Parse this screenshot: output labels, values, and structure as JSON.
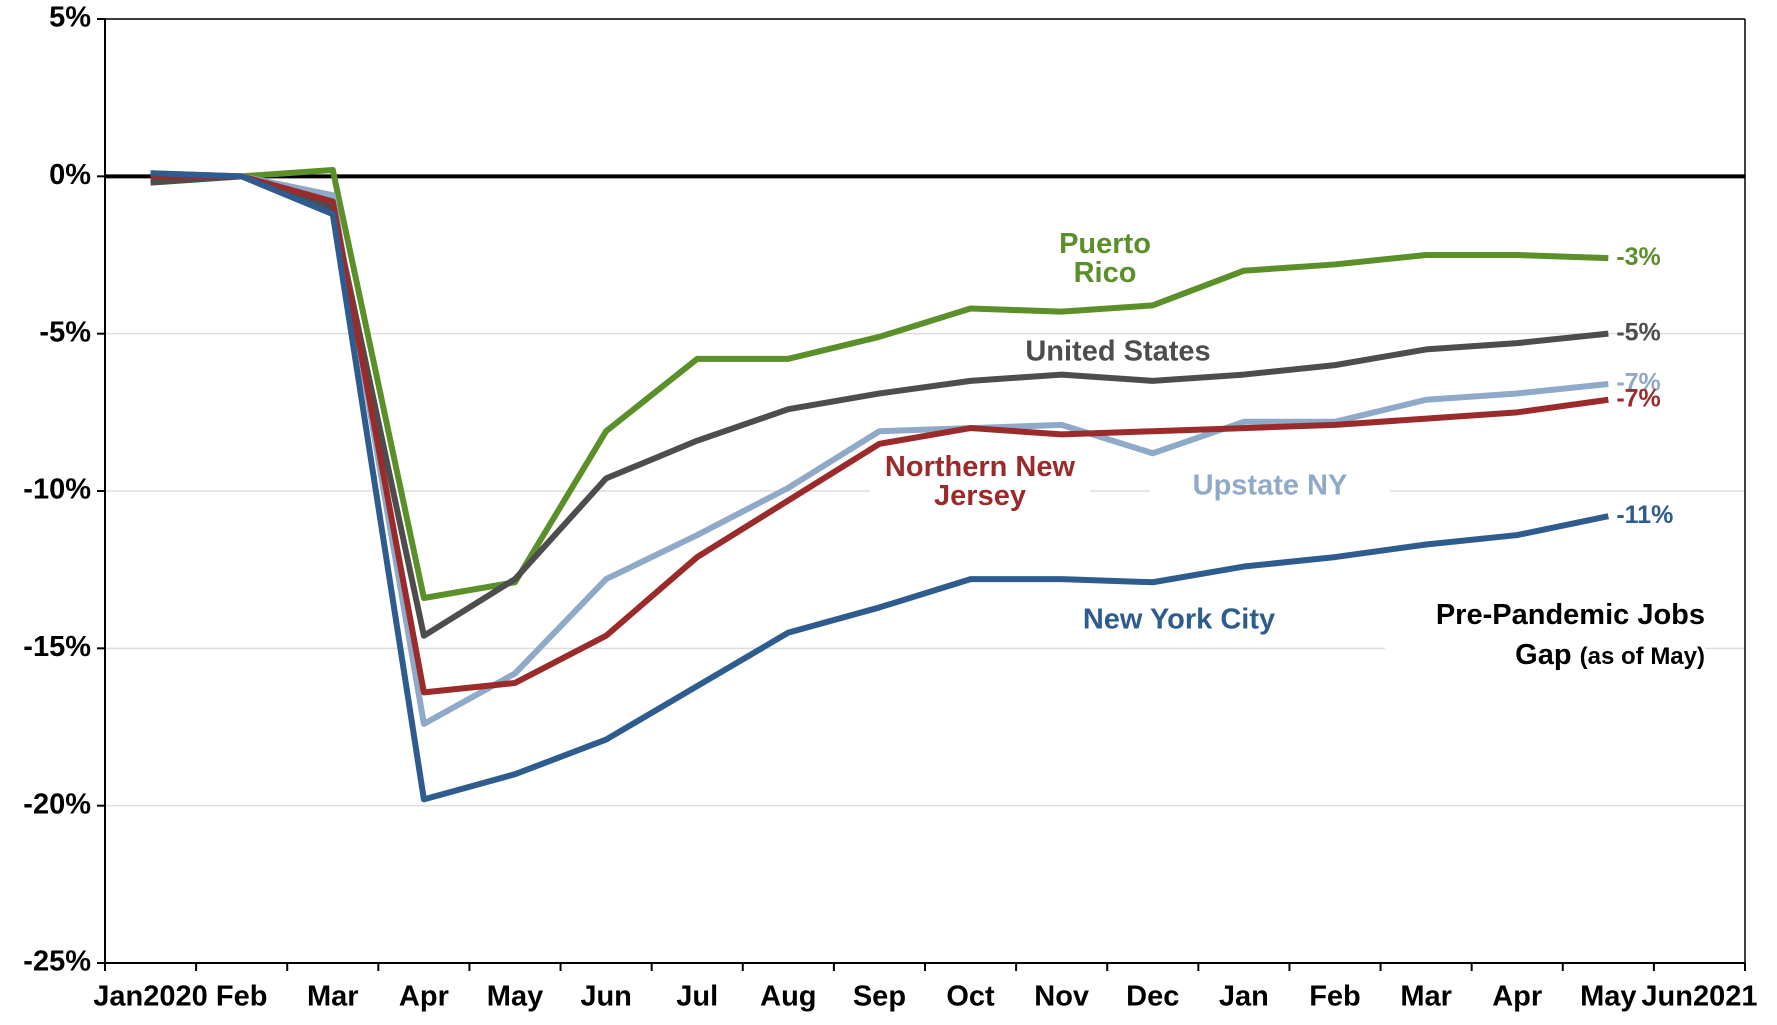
{
  "chart_data": {
    "type": "line",
    "categories": [
      "Jan2020",
      "Feb",
      "Mar",
      "Apr",
      "May",
      "Jun",
      "Jul",
      "Aug",
      "Sep",
      "Oct",
      "Nov",
      "Dec",
      "Jan",
      "Feb",
      "Mar",
      "Apr",
      "May",
      "Jun2021"
    ],
    "series": [
      {
        "name": "Puerto Rico",
        "color": "#5a8f29",
        "values": [
          0,
          0,
          0.2,
          -13.4,
          -12.9,
          -8.1,
          -5.8,
          -5.8,
          -5.1,
          -4.2,
          -4.3,
          -4.1,
          -3.0,
          -2.8,
          -2.5,
          -2.5,
          -2.6,
          null
        ],
        "value_labels": [
          null,
          null,
          null,
          null,
          null,
          null,
          null,
          null,
          null,
          null,
          null,
          null,
          null,
          null,
          null,
          null,
          "-3%",
          null
        ]
      },
      {
        "name": "United States",
        "color": "#4d4d4d",
        "values": [
          -0.2,
          0,
          -1.0,
          -14.6,
          -12.8,
          -9.6,
          -8.4,
          -7.4,
          -6.9,
          -6.5,
          -6.3,
          -6.5,
          -6.3,
          -6.0,
          -5.5,
          -5.3,
          -5.0,
          null
        ],
        "value_labels": [
          null,
          null,
          null,
          null,
          null,
          null,
          null,
          null,
          null,
          null,
          null,
          null,
          null,
          null,
          null,
          null,
          "-5%",
          null
        ]
      },
      {
        "name": "Upstate NY",
        "color": "#8fa9c8",
        "values": [
          0.1,
          0,
          -0.6,
          -17.4,
          -15.8,
          -12.8,
          -11.4,
          -9.9,
          -8.1,
          -8.0,
          -7.9,
          -8.8,
          -7.8,
          -7.8,
          -7.1,
          -6.9,
          -6.6,
          null
        ],
        "value_labels": [
          null,
          null,
          null,
          null,
          null,
          null,
          null,
          null,
          null,
          null,
          null,
          null,
          null,
          null,
          null,
          null,
          "-7%",
          null
        ]
      },
      {
        "name": "Northern New Jersey",
        "color": "#9b2a2a",
        "values": [
          0,
          0,
          -0.8,
          -16.4,
          -16.1,
          -14.6,
          -12.1,
          -10.3,
          -8.5,
          -8.0,
          -8.2,
          -8.1,
          -8.0,
          -7.9,
          -7.7,
          -7.5,
          -7.1,
          null
        ],
        "value_labels": [
          null,
          null,
          null,
          null,
          null,
          null,
          null,
          null,
          null,
          null,
          null,
          null,
          null,
          null,
          null,
          null,
          "-7%",
          null
        ]
      },
      {
        "name": "New York City",
        "color": "#2e5c8e",
        "values": [
          0.1,
          0,
          -1.2,
          -19.8,
          -19.0,
          -17.9,
          -16.2,
          -14.5,
          -13.7,
          -12.8,
          -12.8,
          -12.9,
          -12.4,
          -12.1,
          -11.7,
          -11.4,
          -10.8,
          null
        ],
        "value_labels": [
          null,
          null,
          null,
          null,
          null,
          null,
          null,
          null,
          null,
          null,
          null,
          null,
          null,
          null,
          null,
          null,
          "-11%",
          null
        ]
      }
    ],
    "annotation": "Pre-Pandemic Jobs Gap",
    "annotation_note": "(as of May)",
    "ylim": [
      -25,
      5
    ],
    "yticks": [
      {
        "value": 5,
        "label": "5%"
      },
      {
        "value": 0,
        "label": "0%"
      },
      {
        "value": -5,
        "label": "-5%"
      },
      {
        "value": -10,
        "label": "-10%"
      },
      {
        "value": -15,
        "label": "-15%"
      },
      {
        "value": -20,
        "label": "-20%"
      },
      {
        "value": -25,
        "label": "-25%"
      }
    ],
    "grid": true
  }
}
